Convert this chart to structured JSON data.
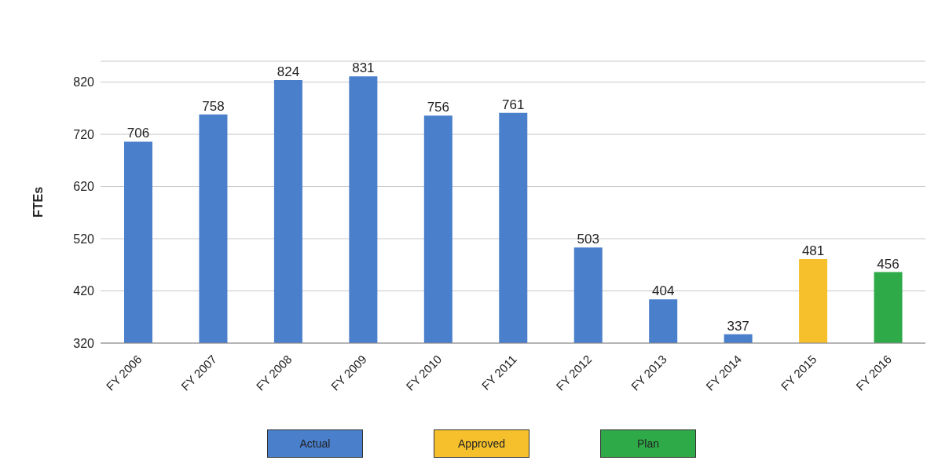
{
  "chart_data": {
    "type": "bar",
    "ylabel": "FTEs",
    "stacked": true,
    "categories": [
      "FY 2006",
      "FY 2007",
      "FY 2008",
      "FY 2009",
      "FY 2010",
      "FY 2011",
      "FY 2012",
      "FY 2013",
      "FY 2014",
      "FY 2015",
      "FY 2016"
    ],
    "series": [
      {
        "name": "Actual",
        "color": "#4a7fcc",
        "values": [
          706,
          758,
          824,
          831,
          756,
          761,
          503,
          404,
          337,
          null,
          null
        ]
      },
      {
        "name": "Approved",
        "color": "#f5c02c",
        "values": [
          null,
          null,
          null,
          null,
          null,
          null,
          null,
          null,
          null,
          481,
          null
        ]
      },
      {
        "name": "Plan",
        "color": "#2eaa48",
        "values": [
          null,
          null,
          null,
          null,
          null,
          null,
          null,
          null,
          null,
          null,
          456
        ]
      }
    ],
    "ylim": [
      320,
      860
    ],
    "yticks": [
      320,
      420,
      520,
      620,
      720,
      820
    ],
    "grid": "y",
    "legend": "bottom",
    "data_labels": true
  }
}
